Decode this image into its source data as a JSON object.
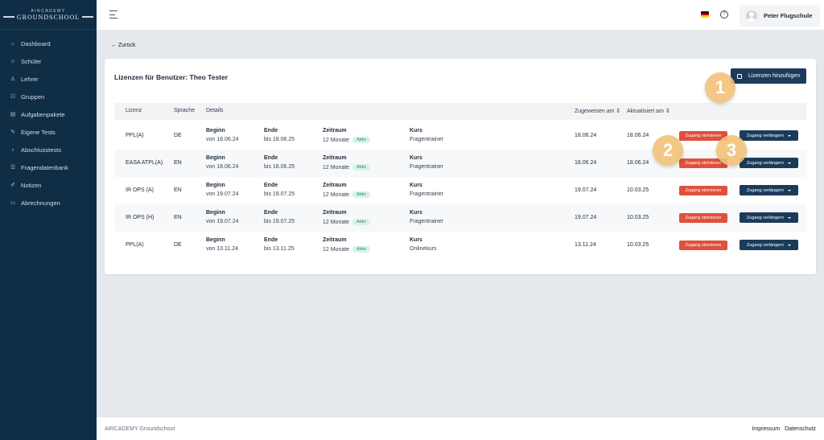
{
  "sidebar": {
    "logo_top": "AIRCADEMY",
    "logo_bottom": "GROUNDSCHOOL",
    "items": [
      {
        "label": "Dashboard",
        "icon": "home-icon"
      },
      {
        "label": "Schüler",
        "icon": "user-icon"
      },
      {
        "label": "Lehrer",
        "icon": "teacher-icon"
      },
      {
        "label": "Gruppen",
        "icon": "users-icon"
      },
      {
        "label": "Aufgabenpakete",
        "icon": "package-icon"
      },
      {
        "label": "Eigene Tests",
        "icon": "edit-icon"
      },
      {
        "label": "Abschlusstests",
        "icon": "award-icon"
      },
      {
        "label": "Fragendatenbank",
        "icon": "list-icon"
      },
      {
        "label": "Notizen",
        "icon": "pencil-icon"
      },
      {
        "label": "Abrechnungen",
        "icon": "document-icon"
      }
    ]
  },
  "topbar": {
    "help_glyph": "?",
    "user_name": "Peter Flugschule"
  },
  "back_label": "Zurück",
  "card": {
    "title": "Lizenzen für Benutzer: Theo Tester",
    "add_button": "Lizenzen hinzufügen"
  },
  "table": {
    "headers": {
      "lizenz": "Lizenz",
      "sprache": "Sprache",
      "details": "Details",
      "zugewiesen": "Zugeweisen am ⇕",
      "aktualisiert": "Aktualisiert am ⇕"
    },
    "labels": {
      "beginn": "Beginn",
      "ende": "Ende",
      "zeitraum": "Zeitraum",
      "kurs": "Kurs"
    },
    "rows": [
      {
        "lizenz": "PPL(A)",
        "sprache": "DE",
        "beginn": "von 18.06.24",
        "ende": "bis 18.06.25",
        "zeitraum": "12 Monate",
        "status": "Aktiv",
        "kurs": "Fragentrainer",
        "zugewiesen": "18.06.24",
        "aktualisiert": "18.06.24",
        "storno": "Zugang stornieren",
        "extend": "Zugang verlängern"
      },
      {
        "lizenz": "EASA ATPL(A)",
        "sprache": "EN",
        "beginn": "von 18.06.24",
        "ende": "bis 18.06.25",
        "zeitraum": "12 Monate",
        "status": "Aktiv",
        "kurs": "Fragentrainer",
        "zugewiesen": "18.06.24",
        "aktualisiert": "18.06.24",
        "storno": "Zugang stornieren",
        "extend": "Zugang verlängern"
      },
      {
        "lizenz": "IR OPS (A)",
        "sprache": "EN",
        "beginn": "von 19.07.24",
        "ende": "bis 19.07.25",
        "zeitraum": "12 Monate",
        "status": "Aktiv",
        "kurs": "Fragentrainer",
        "zugewiesen": "19.07.24",
        "aktualisiert": "10.03.25",
        "storno": "Zugang stornieren",
        "extend": "Zugang verlängern"
      },
      {
        "lizenz": "IR OPS (H)",
        "sprache": "EN",
        "beginn": "von 19.07.24",
        "ende": "bis 19.07.25",
        "zeitraum": "12 Monate",
        "status": "Aktiv",
        "kurs": "Fragentrainer",
        "zugewiesen": "19.07.24",
        "aktualisiert": "10.03.25",
        "storno": "Zugang stornieren",
        "extend": "Zugang verlängern"
      },
      {
        "lizenz": "PPL(A)",
        "sprache": "DE",
        "beginn": "von 13.11.24",
        "ende": "bis 13.11.25",
        "zeitraum": "12 Monate",
        "status": "Aktiv",
        "kurs": "Onlinekurs",
        "zugewiesen": "13.11.24",
        "aktualisiert": "10.03.25",
        "storno": "Zugang stornieren",
        "extend": "Zugang verlängern"
      }
    ]
  },
  "markers": [
    "1",
    "2",
    "3"
  ],
  "footer": {
    "left": "AIRCADEMY Groundschool",
    "impressum": "Impressum",
    "datenschutz": "Datenschutz"
  },
  "colors": {
    "sidebar_bg": "#0f2d45",
    "primary": "#1b3b5a",
    "danger": "#e0503d",
    "marker": "#f2c27a",
    "badge_bg": "#d7f2e7"
  }
}
